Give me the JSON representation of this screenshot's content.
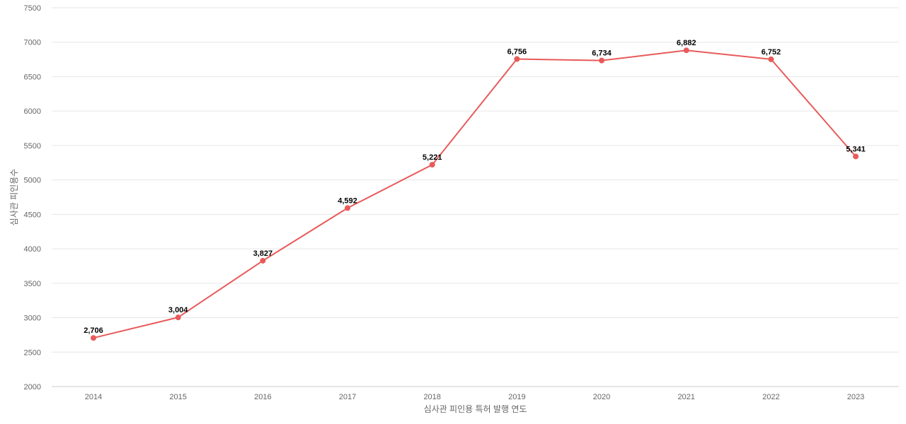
{
  "chart_data": {
    "type": "line",
    "title": "",
    "xlabel": "심사관 피인용 특허 발행 연도",
    "ylabel": "심사관 피인용수",
    "categories": [
      "2014",
      "2015",
      "2016",
      "2017",
      "2018",
      "2019",
      "2020",
      "2021",
      "2022",
      "2023"
    ],
    "series": [
      {
        "values": [
          2706,
          3004,
          3827,
          4592,
          5221,
          6756,
          6734,
          6882,
          6752,
          5341
        ],
        "labels": [
          "2,706",
          "3,004",
          "3,827",
          "4,592",
          "5,221",
          "6,756",
          "6,734",
          "6,882",
          "6,752",
          "5,341"
        ],
        "color": "#e85a5a"
      }
    ],
    "ylim": [
      2000,
      7500
    ],
    "yticks": [
      "2000",
      "2500",
      "3000",
      "3500",
      "4000",
      "4500",
      "5000",
      "5500",
      "6000",
      "6500",
      "7000",
      "7500"
    ],
    "grid": true,
    "legend": "none"
  }
}
